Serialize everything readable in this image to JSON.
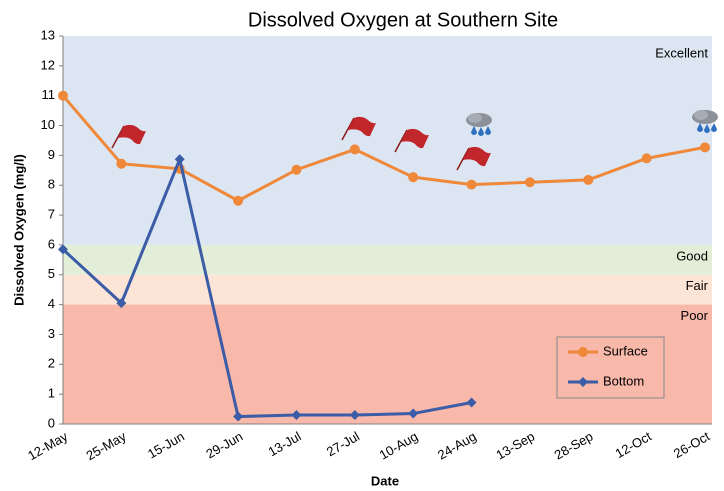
{
  "chart_data": {
    "type": "line",
    "title": "Dissolved Oxygen at Southern Site",
    "x_label": "Date",
    "y_label": "Dissolved Oxygen (mg/l)",
    "categories": [
      "12-May",
      "25-May",
      "15-Jun",
      "29-Jun",
      "13-Jul",
      "27-Jul",
      "10-Aug",
      "24-Aug",
      "13-Sep",
      "28-Sep",
      "12-Oct",
      "26-Oct"
    ],
    "series": [
      {
        "name": "Surface",
        "color": "#f0883a",
        "marker": "circle",
        "values": [
          11.0,
          8.72,
          8.55,
          7.48,
          8.52,
          9.2,
          8.27,
          8.02,
          8.1,
          8.18,
          8.9,
          9.27
        ]
      },
      {
        "name": "Bottom",
        "color": "#3b5ca6",
        "marker": "diamond",
        "values": [
          5.85,
          4.05,
          8.87,
          0.25,
          0.3,
          0.3,
          0.35,
          0.72,
          null,
          null,
          null,
          null
        ]
      }
    ],
    "bands": [
      {
        "name": "Excellent",
        "range": [
          6,
          13
        ],
        "color": "#dce6f2"
      },
      {
        "name": "Good",
        "range": [
          5,
          6
        ],
        "color": "#e3eed9"
      },
      {
        "name": "Fair",
        "range": [
          4,
          5
        ],
        "color": "#fce4d6"
      },
      {
        "name": "Poor",
        "range": [
          0,
          4
        ],
        "color": "#f8b9ab"
      }
    ],
    "ylim": [
      0,
      13
    ],
    "yticks": [
      0,
      1,
      2,
      3,
      4,
      5,
      6,
      7,
      8,
      9,
      10,
      11,
      12,
      13
    ],
    "grid": false,
    "legend": "lower right"
  }
}
